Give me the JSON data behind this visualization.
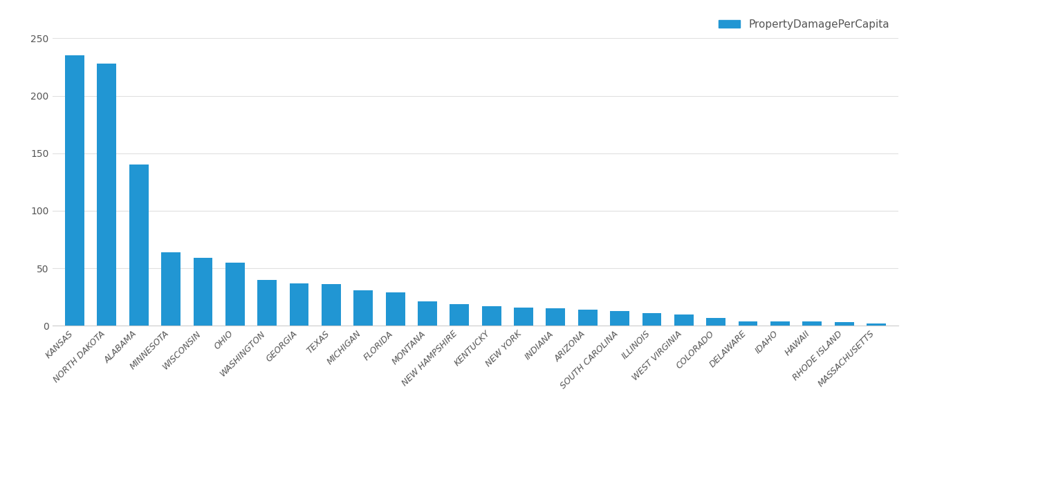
{
  "categories": [
    "KANSAS",
    "NORTH DAKOTA",
    "ALABAMA",
    "MINNESOTA",
    "WISCONSIN",
    "OHIO",
    "WASHINGTON",
    "GEORGIA",
    "TEXAS",
    "MICHIGAN",
    "FLORIDA",
    "MONTANA",
    "NEW HAMPSHIRE",
    "KENTUCKY",
    "NEW YORK",
    "INDIANA",
    "ARIZONA",
    "SOUTH CAROLINA",
    "ILLINOIS",
    "WEST VIRGINIA",
    "COLORADO",
    "DELAWARE",
    "IDAHO",
    "HAWAII",
    "RHODE ISLAND",
    "MASSACHUSETTS"
  ],
  "values": [
    235,
    228,
    140,
    64,
    59,
    55,
    40,
    37,
    36,
    31,
    29,
    21,
    19,
    17,
    16,
    15,
    14,
    13,
    11,
    10,
    7,
    4,
    4,
    4,
    3,
    2
  ],
  "bar_color": "#2196d3",
  "legend_label": "PropertyDamagePerCapita",
  "legend_color": "#2196d3",
  "ylim": [
    0,
    250
  ],
  "yticks": [
    0,
    50,
    100,
    150,
    200,
    250
  ],
  "background_color": "#ffffff",
  "grid_color": "#e0e0e0",
  "tick_label_color": "#555555",
  "axis_color": "#cccccc"
}
